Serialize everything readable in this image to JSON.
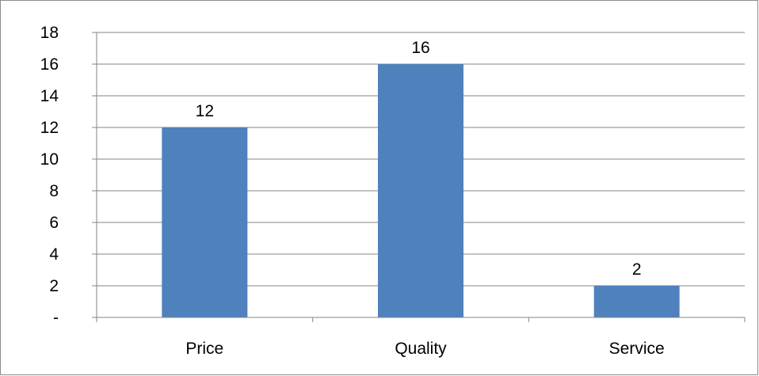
{
  "chart_data": {
    "type": "bar",
    "title": "",
    "xlabel": "",
    "ylabel": "",
    "categories": [
      "Price",
      "Quality",
      "Service"
    ],
    "values": [
      12,
      16,
      2
    ],
    "data_labels": [
      "12",
      "16",
      "2"
    ],
    "ylim": [
      0,
      18
    ],
    "y_ticks": [
      0,
      2,
      4,
      6,
      8,
      10,
      12,
      14,
      16,
      18
    ],
    "y_tick_labels": [
      "-",
      "2",
      "4",
      "6",
      "8",
      "10",
      "12",
      "14",
      "16",
      "18"
    ],
    "grid": true,
    "legend": "none",
    "colors": {
      "bar": "#4f81bd",
      "grid": "#868686",
      "axis": "#868686",
      "frame": "#8c8c8c"
    }
  }
}
